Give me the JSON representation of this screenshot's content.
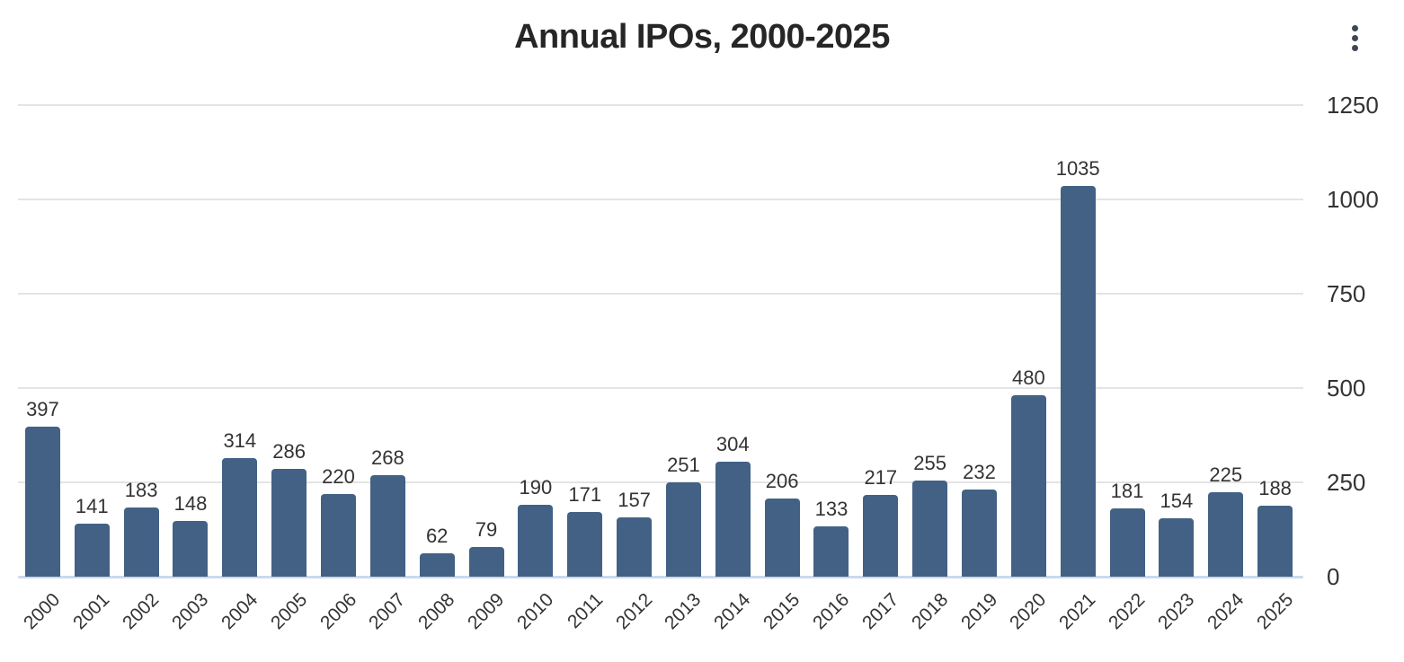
{
  "header": {
    "title": "Annual IPOs, 2000-2025",
    "menu_icon": "kebab-menu-icon"
  },
  "chart_data": {
    "type": "bar",
    "title": "Annual IPOs, 2000-2025",
    "categories": [
      "2000",
      "2001",
      "2002",
      "2003",
      "2004",
      "2005",
      "2006",
      "2007",
      "2008",
      "2009",
      "2010",
      "2011",
      "2012",
      "2013",
      "2014",
      "2015",
      "2016",
      "2017",
      "2018",
      "2019",
      "2020",
      "2021",
      "2022",
      "2023",
      "2024",
      "2025"
    ],
    "values": [
      397,
      141,
      183,
      148,
      314,
      286,
      220,
      268,
      62,
      79,
      190,
      171,
      157,
      251,
      304,
      206,
      133,
      217,
      255,
      232,
      480,
      1035,
      181,
      154,
      225,
      188
    ],
    "xlabel": "",
    "ylabel": "",
    "y_ticks": [
      0,
      250,
      500,
      750,
      1000,
      1250
    ],
    "ylim": [
      0,
      1250
    ],
    "bar_color": "#426185",
    "grid": true,
    "legend_position": "none",
    "value_labels_shown": true,
    "y_axis_position": "right",
    "x_tick_rotation_deg": -45
  },
  "colors": {
    "bar": "#426185",
    "gridline": "#e4e4e4",
    "axis_line": "#ccd9ec",
    "label_text": "#333333",
    "title_text": "#262626",
    "kebab_dot": "#3f4756"
  }
}
